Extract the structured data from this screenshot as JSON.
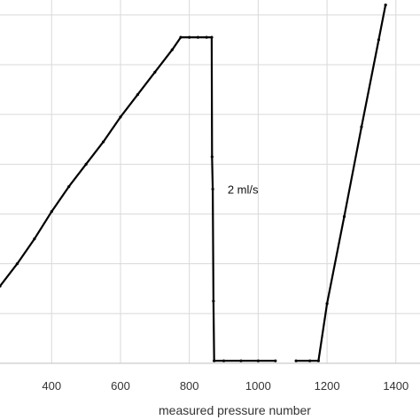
{
  "chart_data": {
    "type": "line",
    "title": "",
    "xlabel": "measured pressure number",
    "ylabel": "",
    "xlim": [
      250,
      1470
    ],
    "ylim": [
      0,
      7.3
    ],
    "x_ticks": [
      400,
      600,
      800,
      1000,
      1200,
      1400
    ],
    "x_tick_labels": [
      "400",
      "600",
      "800",
      "1000",
      "1200",
      "1400"
    ],
    "y_gridlines": [
      1,
      2,
      3,
      4,
      5,
      6,
      7
    ],
    "grid": true,
    "annotations": [
      {
        "text": "2 ml/s",
        "x": 875,
        "y": 3.5
      }
    ],
    "series": [
      {
        "color": "#000000",
        "segments": [
          {
            "points": [
              [
                250,
                1.55
              ],
              [
                300,
                2.0
              ],
              [
                350,
                2.5
              ],
              [
                400,
                3.05
              ],
              [
                450,
                3.55
              ],
              [
                500,
                4.0
              ],
              [
                550,
                4.45
              ],
              [
                600,
                4.95
              ],
              [
                650,
                5.4
              ],
              [
                700,
                5.85
              ],
              [
                750,
                6.3
              ],
              [
                775,
                6.55
              ],
              [
                800,
                6.55
              ],
              [
                825,
                6.55
              ],
              [
                850,
                6.55
              ],
              [
                865,
                6.55
              ],
              [
                866,
                4.15
              ],
              [
                868,
                3.5
              ],
              [
                870,
                1.25
              ],
              [
                872,
                0.05
              ],
              [
                900,
                0.05
              ],
              [
                950,
                0.05
              ],
              [
                1000,
                0.05
              ],
              [
                1050,
                0.05
              ]
            ]
          },
          {
            "points": [
              [
                1110,
                0.05
              ],
              [
                1150,
                0.05
              ],
              [
                1175,
                0.05
              ],
              [
                1200,
                1.2
              ],
              [
                1250,
                2.95
              ],
              [
                1300,
                4.75
              ],
              [
                1350,
                6.5
              ],
              [
                1370,
                7.2
              ]
            ]
          }
        ]
      }
    ]
  }
}
